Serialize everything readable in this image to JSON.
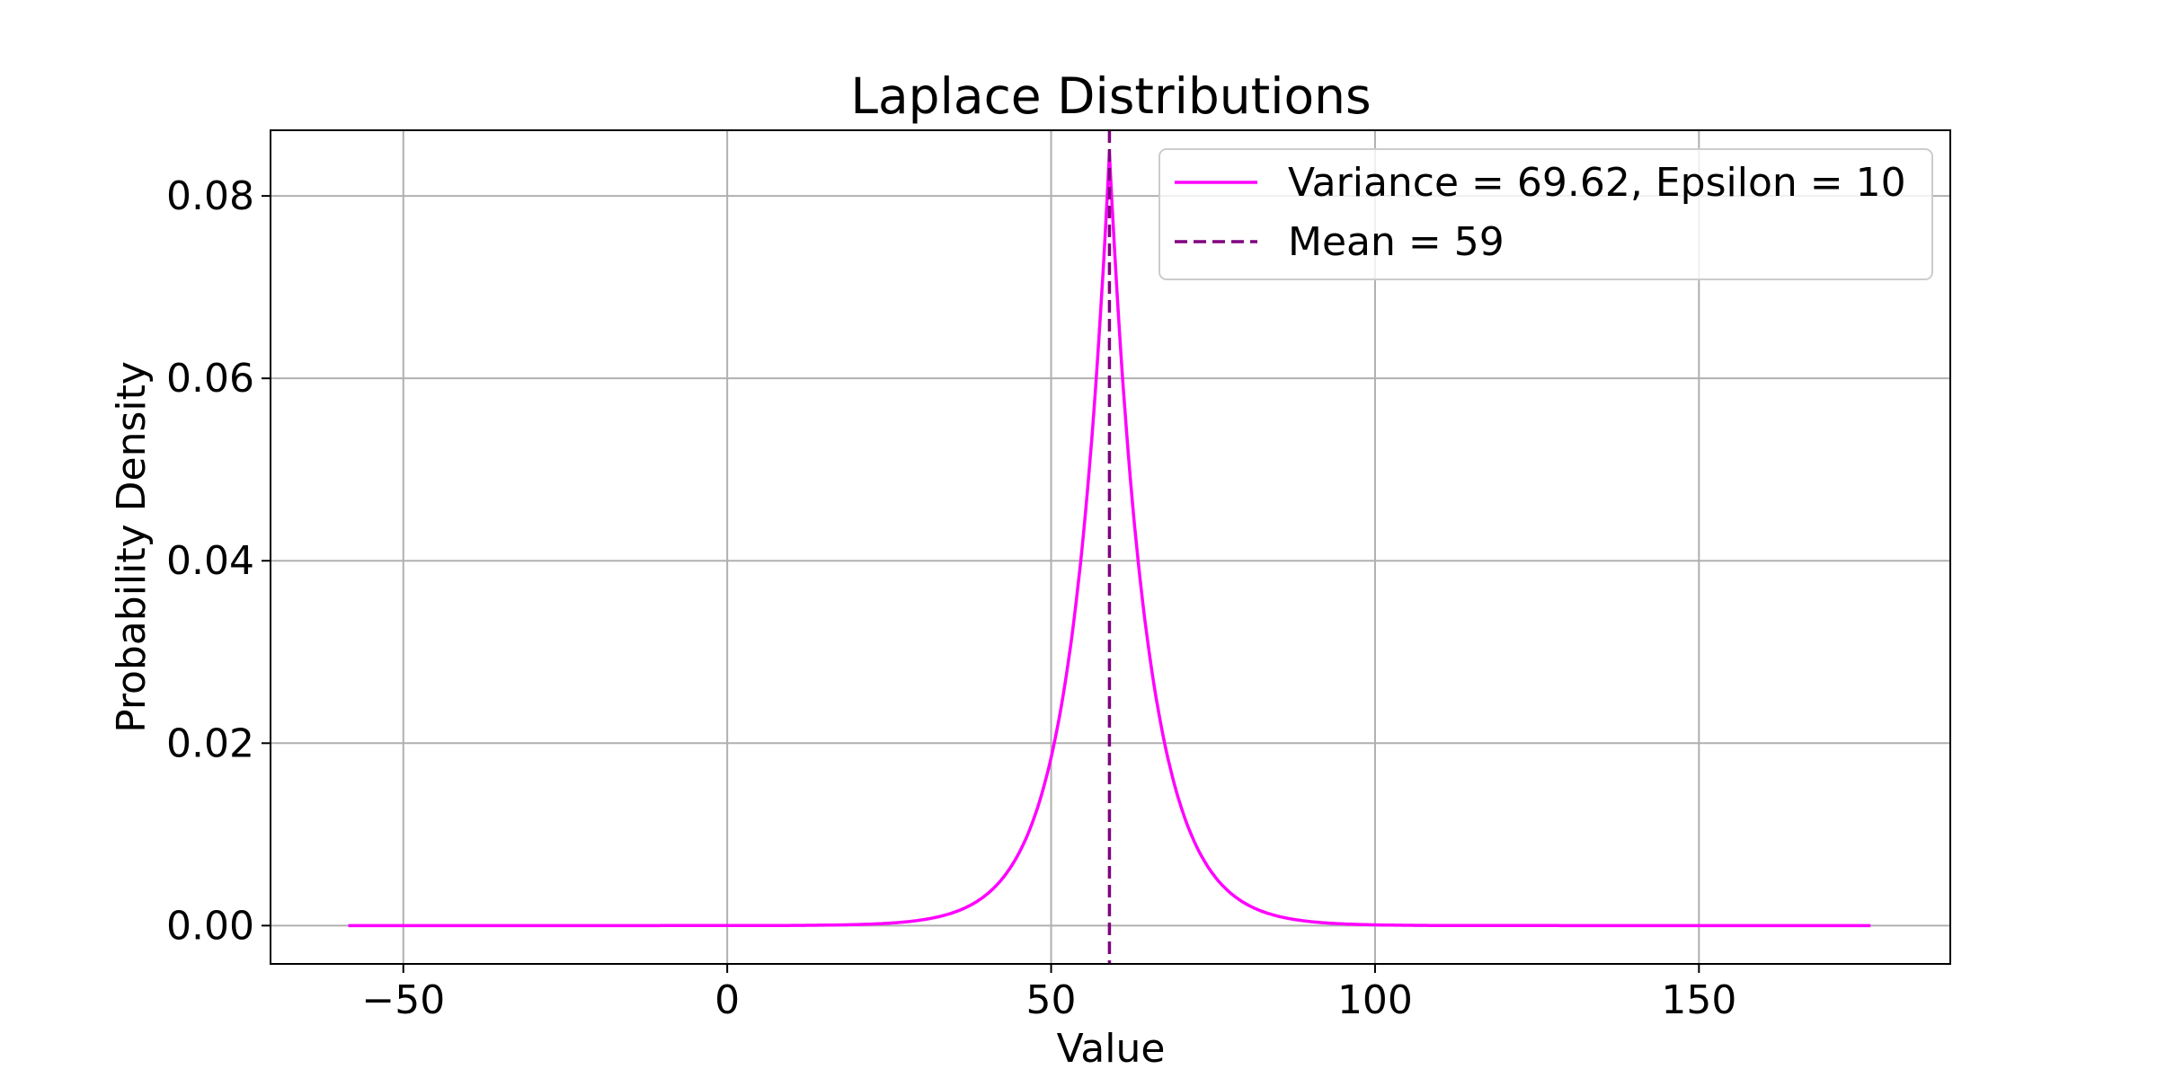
{
  "chart_data": {
    "type": "line",
    "title": "Laplace Distributions",
    "xlabel": "Value",
    "ylabel": "Probability Density",
    "xlim": [
      -70.5,
      188.8
    ],
    "ylim": [
      -0.0042,
      0.0872
    ],
    "xticks": [
      -50,
      0,
      50,
      100,
      150
    ],
    "xtick_labels": [
      "−50",
      "0",
      "50",
      "100",
      "150"
    ],
    "yticks": [
      0.0,
      0.02,
      0.04,
      0.06,
      0.08
    ],
    "ytick_labels": [
      "0.00",
      "0.02",
      "0.04",
      "0.06",
      "0.08"
    ],
    "grid": true,
    "legend_position": "top-right",
    "series": [
      {
        "name": "Variance = 69.62, Epsilon = 10",
        "kind": "laplace_pdf",
        "color": "#ff00ff",
        "style": "solid",
        "x_range": [
          -58.5,
          176.5
        ],
        "location": 59,
        "peak_density": 0.0847
      }
    ],
    "reference_lines": [
      {
        "name": "Mean = 59",
        "orientation": "vertical",
        "x": 59,
        "color": "#800080",
        "style": "dashed"
      }
    ]
  }
}
